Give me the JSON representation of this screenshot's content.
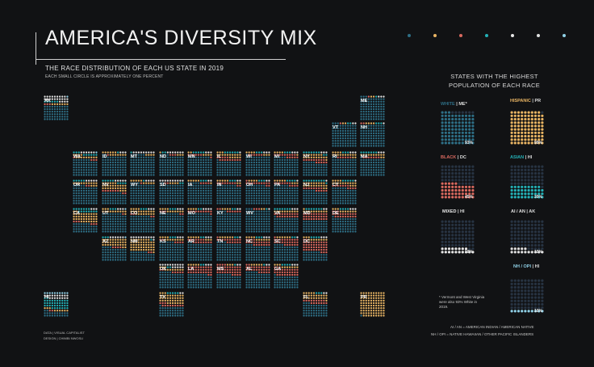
{
  "title": "AMERICA'S DIVERSITY MIX",
  "subtitle": "THE RACE DISTRIBUTION OF EACH US STATE IN 2019",
  "note": "EACH SMALL CIRCLE IS APPROXIMATELY ONE PERCENT",
  "colors": {
    "white": "#2e6f86",
    "black": "#d9695f",
    "hispanic": "#e8b463",
    "asian": "#24b1b7",
    "mixed": "#e6e6e6",
    "aian": "#e0e0e0",
    "nhopi": "#8fd0e6",
    "empty": "#273342",
    "legend": [
      "#2e6f86",
      "#e8b463",
      "#d9695f",
      "#24b1b7",
      "#e6e6e6",
      "#e0e0e0",
      "#8fd0e6"
    ]
  },
  "right_panel": {
    "heading": "STATES WITH THE HIGHEST POPULATION OF EACH RACE",
    "items": [
      {
        "label": "WHITE",
        "state": "ME*",
        "pct": "93%",
        "group": "white"
      },
      {
        "label": "HISPANIC",
        "state": "PR",
        "pct": "99%",
        "group": "hispanic"
      },
      {
        "label": "BLACK",
        "state": "DC",
        "pct": "45%",
        "group": "black"
      },
      {
        "label": "ASIAN",
        "state": "HI",
        "pct": "39%",
        "group": "asian"
      },
      {
        "label": "MIXED",
        "state": "HI",
        "pct": "18%",
        "group": "mixed"
      },
      {
        "label": "AI / AN",
        "state": "AK",
        "pct": "15%",
        "group": "aian"
      },
      {
        "label": "NH / OPI",
        "state": "HI",
        "pct": "10%",
        "group": "nhopi"
      }
    ],
    "footnote": "* Vermont and West Virginia were also 93% White in 2019.",
    "def1": "AI / AN = AMERICAN INDIAN / AMERICAN NATIVE",
    "def2": "NH / OPI = NATIVE HAWAIIAN / OTHER PACIFIC ISLANDERS"
  },
  "credits": {
    "data": "DATA | VISUAL CAPITALIST",
    "design": "DESIGN | CHIMBI NWOSU"
  },
  "chart_data": {
    "type": "table",
    "title": "AMERICA'S DIVERSITY MIX",
    "subtitle": "THE RACE DISTRIBUTION OF EACH US STATE IN 2019",
    "states": [
      {
        "abbr": "AK",
        "row": 0,
        "col": 0,
        "white": 60,
        "black": 3,
        "hispanic": 7,
        "asian": 6,
        "mixed": 8,
        "aian": 15,
        "nhopi": 1
      },
      {
        "abbr": "ME",
        "row": 0,
        "col": 11,
        "white": 93,
        "black": 1,
        "hispanic": 2,
        "asian": 1,
        "mixed": 2,
        "aian": 1,
        "nhopi": 0
      },
      {
        "abbr": "VT",
        "row": 1,
        "col": 10,
        "white": 93,
        "black": 1,
        "hispanic": 2,
        "asian": 2,
        "mixed": 2,
        "aian": 0,
        "nhopi": 0
      },
      {
        "abbr": "NH",
        "row": 1,
        "col": 11,
        "white": 90,
        "black": 2,
        "hispanic": 4,
        "asian": 3,
        "mixed": 1,
        "aian": 0,
        "nhopi": 0
      },
      {
        "abbr": "WA",
        "row": 2,
        "col": 1,
        "white": 67,
        "black": 4,
        "hispanic": 13,
        "asian": 9,
        "mixed": 5,
        "aian": 1,
        "nhopi": 1
      },
      {
        "abbr": "ID",
        "row": 2,
        "col": 2,
        "white": 82,
        "black": 1,
        "hispanic": 13,
        "asian": 1,
        "mixed": 2,
        "aian": 1,
        "nhopi": 0
      },
      {
        "abbr": "MT",
        "row": 2,
        "col": 3,
        "white": 86,
        "black": 0,
        "hispanic": 4,
        "asian": 1,
        "mixed": 3,
        "aian": 6,
        "nhopi": 0
      },
      {
        "abbr": "ND",
        "row": 2,
        "col": 4,
        "white": 84,
        "black": 3,
        "hispanic": 4,
        "asian": 2,
        "mixed": 2,
        "aian": 5,
        "nhopi": 0
      },
      {
        "abbr": "MN",
        "row": 2,
        "col": 5,
        "white": 79,
        "black": 7,
        "hispanic": 6,
        "asian": 5,
        "mixed": 2,
        "aian": 1,
        "nhopi": 0
      },
      {
        "abbr": "IL",
        "row": 2,
        "col": 6,
        "white": 61,
        "black": 14,
        "hispanic": 18,
        "asian": 6,
        "mixed": 1,
        "aian": 0,
        "nhopi": 0
      },
      {
        "abbr": "WI",
        "row": 2,
        "col": 7,
        "white": 81,
        "black": 6,
        "hispanic": 7,
        "asian": 3,
        "mixed": 2,
        "aian": 1,
        "nhopi": 0
      },
      {
        "abbr": "MI",
        "row": 2,
        "col": 8,
        "white": 75,
        "black": 14,
        "hispanic": 5,
        "asian": 3,
        "mixed": 2,
        "aian": 1,
        "nhopi": 0
      },
      {
        "abbr": "NY",
        "row": 2,
        "col": 9,
        "white": 55,
        "black": 14,
        "hispanic": 19,
        "asian": 9,
        "mixed": 2,
        "aian": 1,
        "nhopi": 0
      },
      {
        "abbr": "RI",
        "row": 2,
        "col": 10,
        "white": 72,
        "black": 6,
        "hispanic": 16,
        "asian": 3,
        "mixed": 3,
        "aian": 0,
        "nhopi": 0
      },
      {
        "abbr": "MA",
        "row": 2,
        "col": 11,
        "white": 71,
        "black": 7,
        "hispanic": 12,
        "asian": 7,
        "mixed": 3,
        "aian": 0,
        "nhopi": 0
      },
      {
        "abbr": "OR",
        "row": 3,
        "col": 1,
        "white": 75,
        "black": 2,
        "hispanic": 13,
        "asian": 5,
        "mixed": 4,
        "aian": 1,
        "nhopi": 0
      },
      {
        "abbr": "NV",
        "row": 3,
        "col": 2,
        "white": 48,
        "black": 9,
        "hispanic": 29,
        "asian": 9,
        "mixed": 4,
        "aian": 1,
        "nhopi": 0
      },
      {
        "abbr": "WY",
        "row": 3,
        "col": 3,
        "white": 84,
        "black": 1,
        "hispanic": 10,
        "asian": 1,
        "mixed": 2,
        "aian": 2,
        "nhopi": 0
      },
      {
        "abbr": "SD",
        "row": 3,
        "col": 4,
        "white": 82,
        "black": 2,
        "hispanic": 4,
        "asian": 2,
        "mixed": 2,
        "aian": 8,
        "nhopi": 0
      },
      {
        "abbr": "IA",
        "row": 3,
        "col": 5,
        "white": 85,
        "black": 4,
        "hispanic": 6,
        "asian": 3,
        "mixed": 2,
        "aian": 0,
        "nhopi": 0
      },
      {
        "abbr": "IN",
        "row": 3,
        "col": 6,
        "white": 78,
        "black": 10,
        "hispanic": 7,
        "asian": 3,
        "mixed": 2,
        "aian": 0,
        "nhopi": 0
      },
      {
        "abbr": "OH",
        "row": 3,
        "col": 7,
        "white": 78,
        "black": 13,
        "hispanic": 4,
        "asian": 3,
        "mixed": 2,
        "aian": 0,
        "nhopi": 0
      },
      {
        "abbr": "PA",
        "row": 3,
        "col": 8,
        "white": 76,
        "black": 11,
        "hispanic": 8,
        "asian": 4,
        "mixed": 1,
        "aian": 0,
        "nhopi": 0
      },
      {
        "abbr": "NJ",
        "row": 3,
        "col": 9,
        "white": 55,
        "black": 13,
        "hispanic": 21,
        "asian": 10,
        "mixed": 1,
        "aian": 0,
        "nhopi": 0
      },
      {
        "abbr": "CT",
        "row": 3,
        "col": 10,
        "white": 66,
        "black": 11,
        "hispanic": 17,
        "asian": 5,
        "mixed": 1,
        "aian": 0,
        "nhopi": 0
      },
      {
        "abbr": "CA",
        "row": 4,
        "col": 1,
        "white": 37,
        "black": 6,
        "hispanic": 39,
        "asian": 15,
        "mixed": 3,
        "aian": 0,
        "nhopi": 0
      },
      {
        "abbr": "UT",
        "row": 4,
        "col": 2,
        "white": 78,
        "black": 1,
        "hispanic": 14,
        "asian": 3,
        "mixed": 2,
        "aian": 1,
        "nhopi": 1
      },
      {
        "abbr": "CO",
        "row": 4,
        "col": 3,
        "white": 68,
        "black": 4,
        "hispanic": 22,
        "asian": 3,
        "mixed": 2,
        "aian": 1,
        "nhopi": 0
      },
      {
        "abbr": "NE",
        "row": 4,
        "col": 4,
        "white": 78,
        "black": 5,
        "hispanic": 11,
        "asian": 3,
        "mixed": 2,
        "aian": 1,
        "nhopi": 0
      },
      {
        "abbr": "MO",
        "row": 4,
        "col": 5,
        "white": 79,
        "black": 11,
        "hispanic": 4,
        "asian": 2,
        "mixed": 3,
        "aian": 1,
        "nhopi": 0
      },
      {
        "abbr": "KY",
        "row": 4,
        "col": 6,
        "white": 84,
        "black": 8,
        "hispanic": 4,
        "asian": 2,
        "mixed": 2,
        "aian": 0,
        "nhopi": 0
      },
      {
        "abbr": "WV",
        "row": 4,
        "col": 7,
        "white": 93,
        "black": 3,
        "hispanic": 2,
        "asian": 1,
        "mixed": 1,
        "aian": 0,
        "nhopi": 0
      },
      {
        "abbr": "VA",
        "row": 4,
        "col": 8,
        "white": 61,
        "black": 19,
        "hispanic": 10,
        "asian": 7,
        "mixed": 3,
        "aian": 0,
        "nhopi": 0
      },
      {
        "abbr": "MD",
        "row": 4,
        "col": 9,
        "white": 50,
        "black": 30,
        "hispanic": 11,
        "asian": 7,
        "mixed": 2,
        "aian": 0,
        "nhopi": 0
      },
      {
        "abbr": "DE",
        "row": 4,
        "col": 10,
        "white": 61,
        "black": 22,
        "hispanic": 10,
        "asian": 4,
        "mixed": 3,
        "aian": 0,
        "nhopi": 0
      },
      {
        "abbr": "AZ",
        "row": 5,
        "col": 2,
        "white": 54,
        "black": 4,
        "hispanic": 32,
        "asian": 3,
        "mixed": 2,
        "aian": 4,
        "nhopi": 1
      },
      {
        "abbr": "NM",
        "row": 5,
        "col": 3,
        "white": 37,
        "black": 2,
        "hispanic": 49,
        "asian": 1,
        "mixed": 2,
        "aian": 9,
        "nhopi": 0
      },
      {
        "abbr": "KS",
        "row": 5,
        "col": 4,
        "white": 76,
        "black": 6,
        "hispanic": 12,
        "asian": 3,
        "mixed": 2,
        "aian": 1,
        "nhopi": 0
      },
      {
        "abbr": "AR",
        "row": 5,
        "col": 5,
        "white": 72,
        "black": 15,
        "hispanic": 8,
        "asian": 2,
        "mixed": 2,
        "aian": 1,
        "nhopi": 0
      },
      {
        "abbr": "TN",
        "row": 5,
        "col": 6,
        "white": 74,
        "black": 17,
        "hispanic": 6,
        "asian": 2,
        "mixed": 1,
        "aian": 0,
        "nhopi": 0
      },
      {
        "abbr": "NC",
        "row": 5,
        "col": 7,
        "white": 63,
        "black": 21,
        "hispanic": 10,
        "asian": 3,
        "mixed": 2,
        "aian": 1,
        "nhopi": 0
      },
      {
        "abbr": "SC",
        "row": 5,
        "col": 8,
        "white": 64,
        "black": 27,
        "hispanic": 6,
        "asian": 2,
        "mixed": 1,
        "aian": 0,
        "nhopi": 0
      },
      {
        "abbr": "DC",
        "row": 5,
        "col": 9,
        "white": 37,
        "black": 45,
        "hispanic": 11,
        "asian": 4,
        "mixed": 3,
        "aian": 0,
        "nhopi": 0
      },
      {
        "abbr": "OK",
        "row": 6,
        "col": 4,
        "white": 65,
        "black": 7,
        "hispanic": 11,
        "asian": 2,
        "mixed": 6,
        "aian": 9,
        "nhopi": 0
      },
      {
        "abbr": "LA",
        "row": 6,
        "col": 5,
        "white": 58,
        "black": 32,
        "hispanic": 5,
        "asian": 2,
        "mixed": 2,
        "aian": 1,
        "nhopi": 0
      },
      {
        "abbr": "MS",
        "row": 6,
        "col": 6,
        "white": 56,
        "black": 38,
        "hispanic": 3,
        "asian": 1,
        "mixed": 1,
        "aian": 1,
        "nhopi": 0
      },
      {
        "abbr": "AL",
        "row": 6,
        "col": 7,
        "white": 65,
        "black": 27,
        "hispanic": 5,
        "asian": 1,
        "mixed": 1,
        "aian": 1,
        "nhopi": 0
      },
      {
        "abbr": "GA",
        "row": 6,
        "col": 8,
        "white": 51,
        "black": 32,
        "hispanic": 10,
        "asian": 4,
        "mixed": 2,
        "aian": 1,
        "nhopi": 0
      },
      {
        "abbr": "HI",
        "row": 7,
        "col": 0,
        "white": 22,
        "black": 2,
        "hispanic": 9,
        "asian": 39,
        "mixed": 18,
        "aian": 0,
        "nhopi": 10
      },
      {
        "abbr": "TX",
        "row": 7,
        "col": 4,
        "white": 41,
        "black": 12,
        "hispanic": 40,
        "asian": 5,
        "mixed": 1,
        "aian": 1,
        "nhopi": 0
      },
      {
        "abbr": "FL",
        "row": 7,
        "col": 9,
        "white": 53,
        "black": 16,
        "hispanic": 26,
        "asian": 3,
        "mixed": 2,
        "aian": 0,
        "nhopi": 0
      },
      {
        "abbr": "PR",
        "row": 7,
        "col": 11,
        "white": 1,
        "black": 0,
        "hispanic": 99,
        "asian": 0,
        "mixed": 0,
        "aian": 0,
        "nhopi": 0
      }
    ]
  }
}
